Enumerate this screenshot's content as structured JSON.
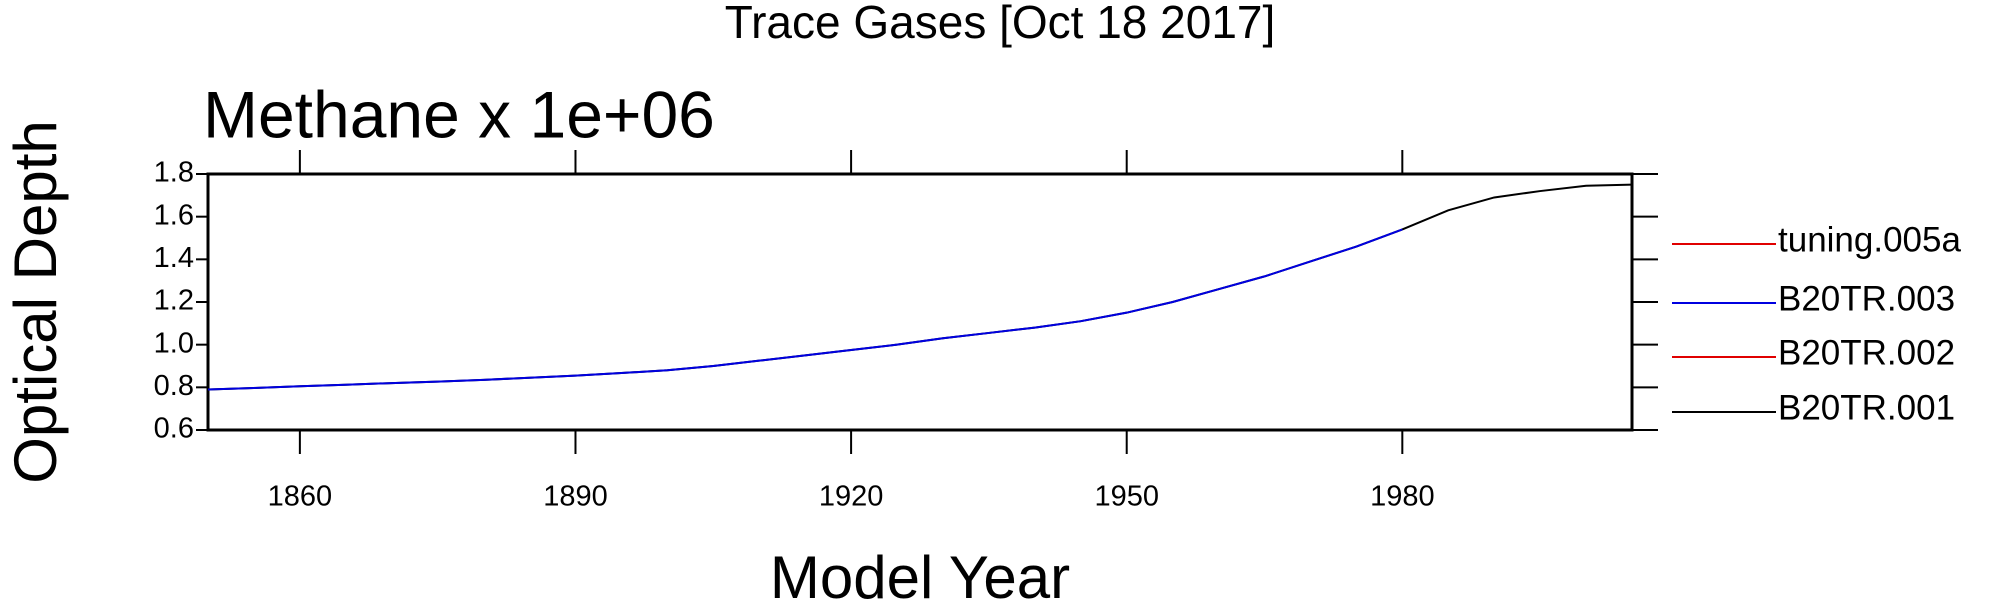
{
  "chart_data": {
    "type": "line",
    "title": "Trace Gases [Oct 18 2017]",
    "subtitle": "Methane x 1e+06",
    "x_label": "Model Year",
    "y_label": "Optical Depth",
    "x": [
      1850,
      1855,
      1860,
      1865,
      1870,
      1875,
      1880,
      1885,
      1890,
      1895,
      1900,
      1905,
      1910,
      1915,
      1920,
      1925,
      1930,
      1935,
      1940,
      1945,
      1950,
      1955,
      1960,
      1965,
      1970,
      1975,
      1980,
      1985,
      1990,
      1995,
      2000,
      2005
    ],
    "series": [
      {
        "name": "tuning.005a",
        "color": "#e00000",
        "values": [
          null,
          null,
          null,
          null,
          null,
          null,
          null,
          null,
          null,
          null,
          null,
          null,
          null,
          null,
          null,
          null,
          null,
          null,
          null,
          null,
          null,
          null,
          null,
          null,
          null,
          null,
          null,
          null,
          null,
          null,
          null,
          null
        ]
      },
      {
        "name": "B20TR.003",
        "color": "#0000e0",
        "values": [
          0.79,
          0.797,
          0.805,
          0.812,
          0.82,
          0.827,
          0.835,
          0.845,
          0.855,
          0.867,
          0.88,
          0.9,
          0.925,
          0.95,
          0.975,
          1.0,
          1.03,
          1.055,
          1.08,
          1.11,
          1.15,
          1.2,
          1.26,
          1.32,
          1.39,
          1.46,
          1.54,
          null,
          null,
          null,
          null,
          null
        ]
      },
      {
        "name": "B20TR.002",
        "color": "#e00000",
        "values": [
          null,
          null,
          null,
          null,
          null,
          null,
          null,
          null,
          null,
          null,
          null,
          null,
          null,
          null,
          null,
          null,
          null,
          null,
          null,
          null,
          null,
          null,
          null,
          null,
          null,
          null,
          null,
          null,
          null,
          null,
          null,
          null
        ]
      },
      {
        "name": "B20TR.001",
        "color": "#000000",
        "values": [
          0.79,
          0.797,
          0.805,
          0.812,
          0.82,
          0.827,
          0.835,
          0.845,
          0.855,
          0.867,
          0.88,
          0.9,
          0.925,
          0.95,
          0.975,
          1.0,
          1.03,
          1.055,
          1.08,
          1.11,
          1.15,
          1.2,
          1.26,
          1.32,
          1.39,
          1.46,
          1.54,
          1.63,
          1.69,
          1.72,
          1.745,
          1.75
        ]
      }
    ],
    "xlim": [
      1850,
      2005
    ],
    "xticks": [
      1860,
      1890,
      1920,
      1950,
      1980
    ],
    "ylim": [
      0.6,
      1.8
    ],
    "yticks": [
      0.6,
      0.8,
      {
        "value": 1,
        "label": "1.0"
      },
      1.2,
      1.4,
      1.6,
      1.8
    ],
    "grid": false
  }
}
